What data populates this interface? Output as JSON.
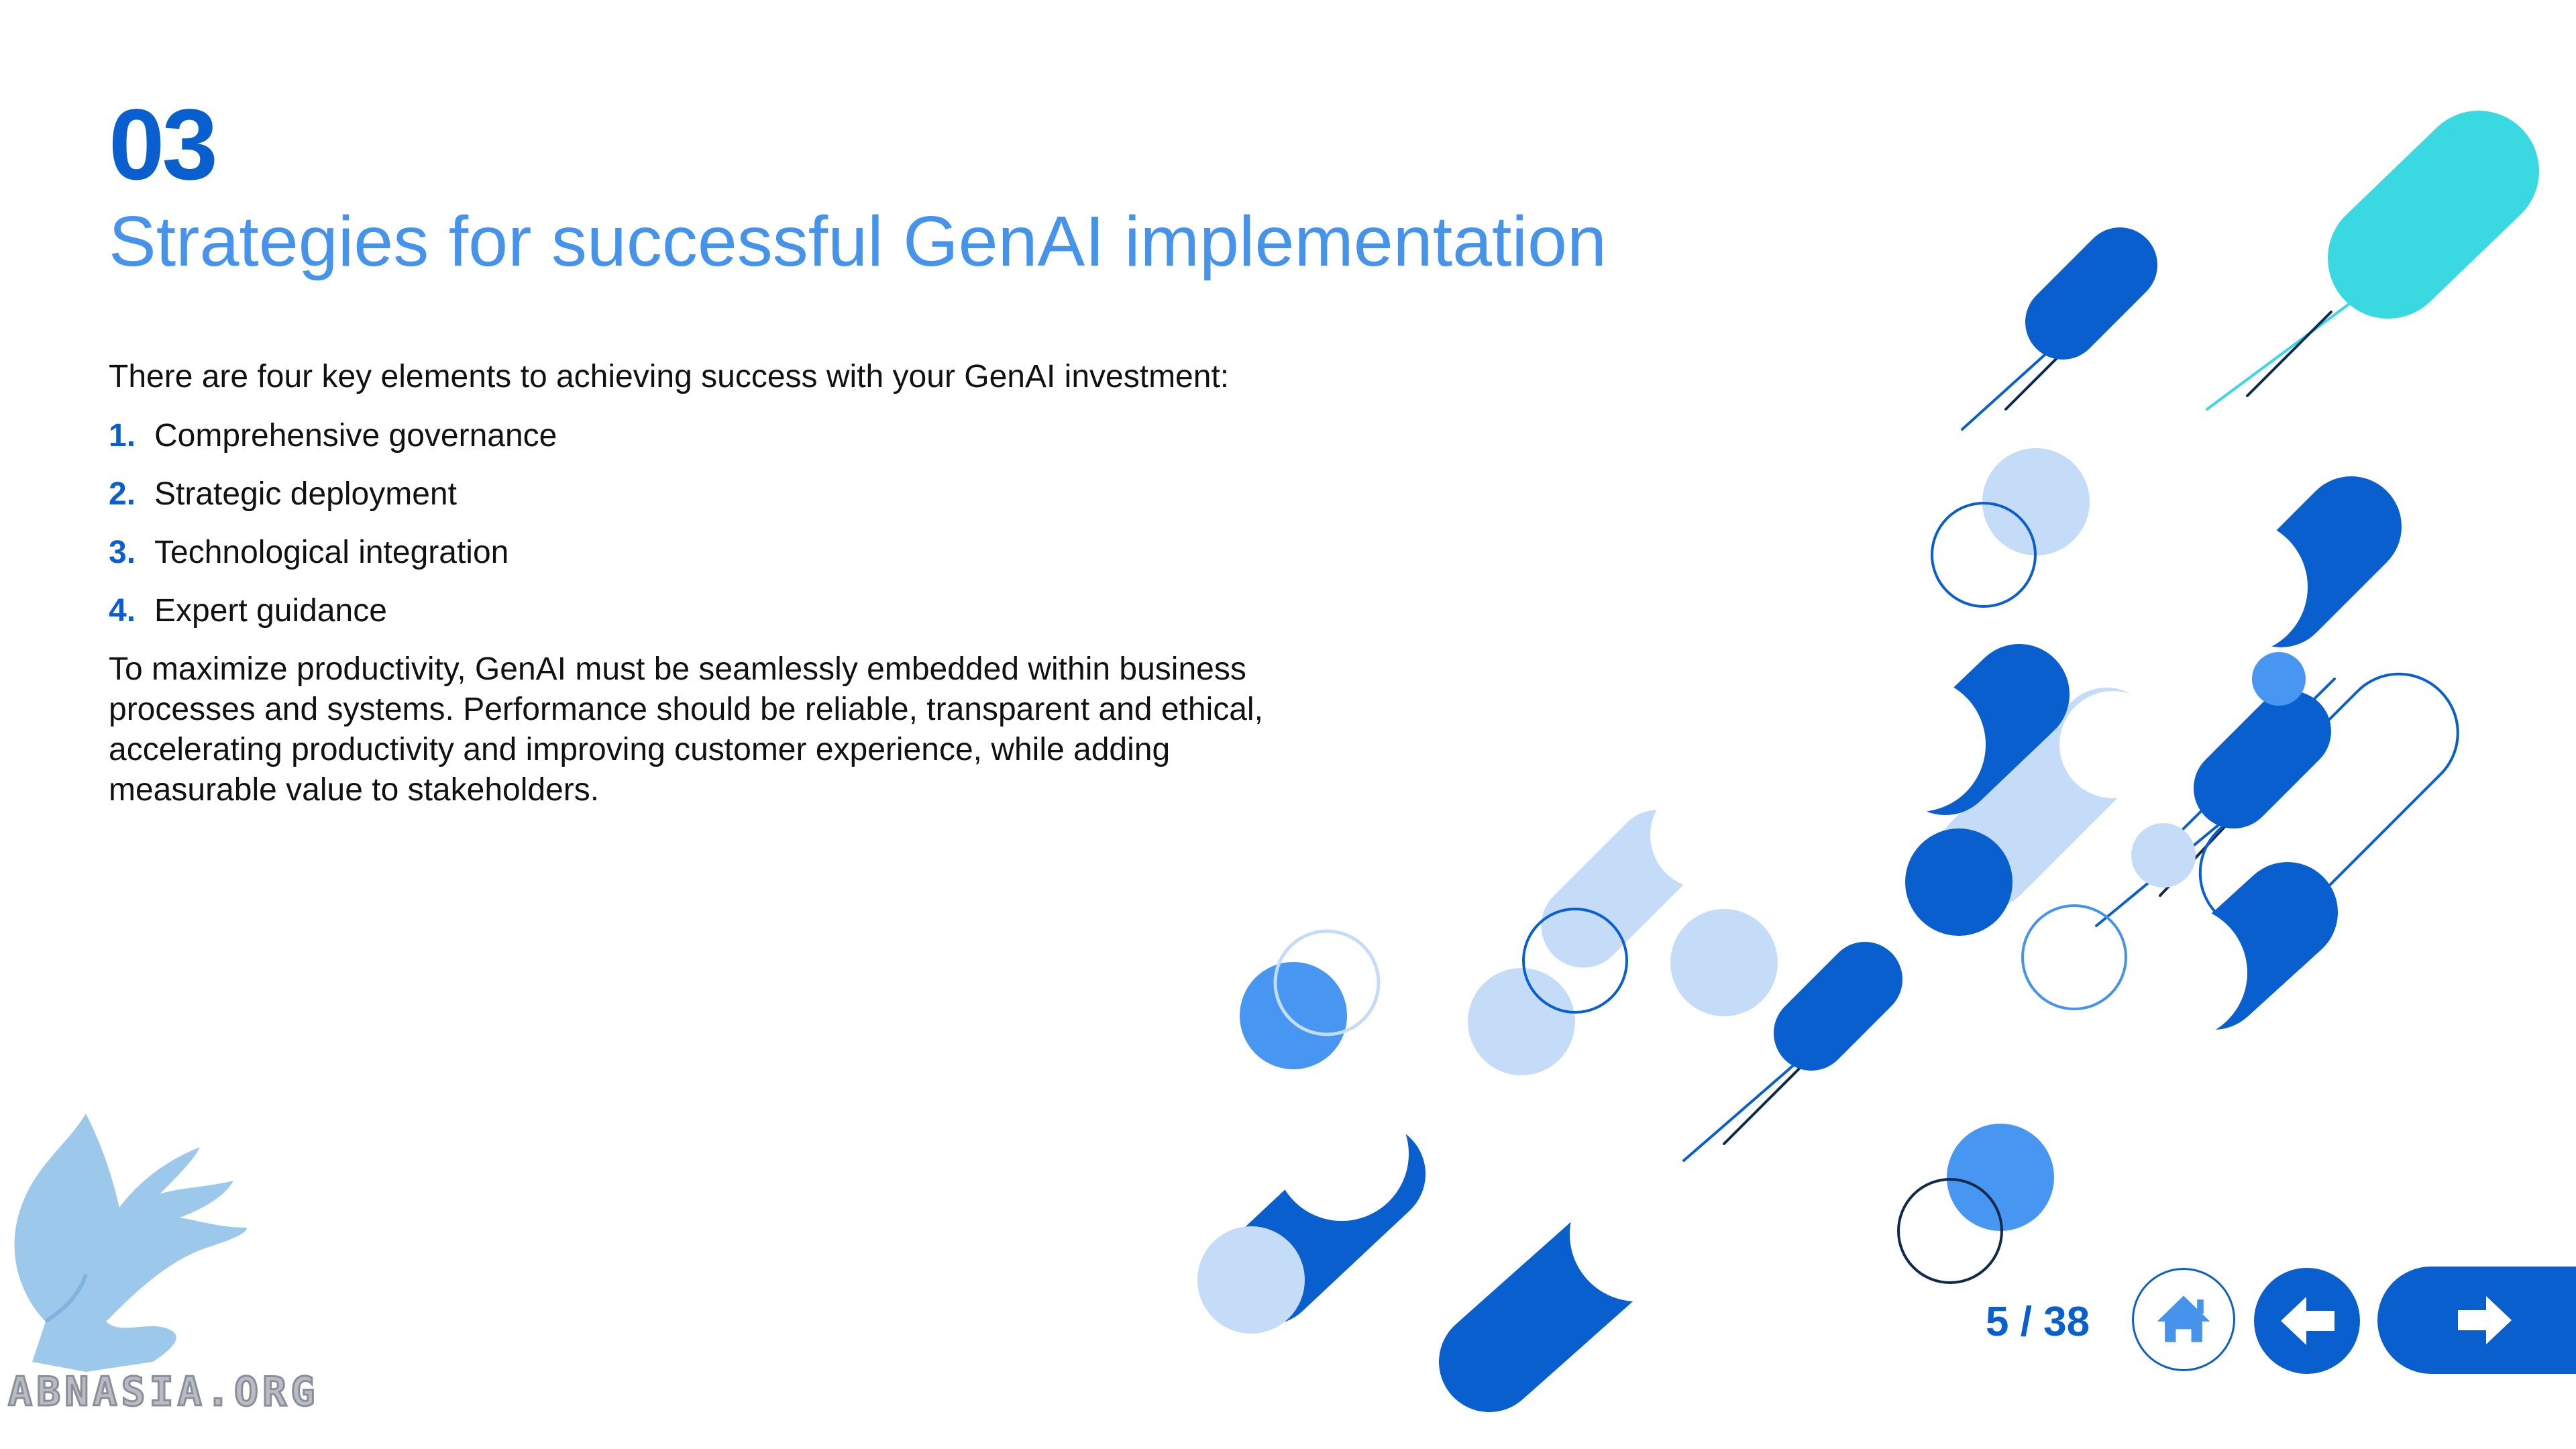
{
  "slide": {
    "section_number": "03",
    "title": "Strategies for successful GenAI implementation",
    "intro": "There are four key elements to achieving success with your GenAI investment:",
    "points": [
      {
        "num": "1.",
        "text": "Comprehensive governance"
      },
      {
        "num": "2.",
        "text": "Strategic deployment"
      },
      {
        "num": "3.",
        "text": "Technological integration"
      },
      {
        "num": "4.",
        "text": "Expert guidance"
      }
    ],
    "body": "To maximize productivity, GenAI must be seamlessly embedded within business processes and systems. Performance should be reliable, transparent and ethical, accelerating productivity and improving customer experience, while adding measurable value to stakeholders."
  },
  "navigation": {
    "page_indicator": "5 / 38",
    "home_icon": "home-icon",
    "back_icon": "arrow-left-icon",
    "next_icon": "arrow-right-icon"
  },
  "watermark": {
    "text": "ABNASIA.ORG",
    "icon": "griffin-logo-icon"
  },
  "colors": {
    "primary": "#0a5fcf",
    "title_blue": "#4593ea",
    "light_blue": "#c4dcf8",
    "mid_blue": "#4696f2",
    "teal": "#3ad9e2",
    "navy": "#0f2a4a"
  }
}
